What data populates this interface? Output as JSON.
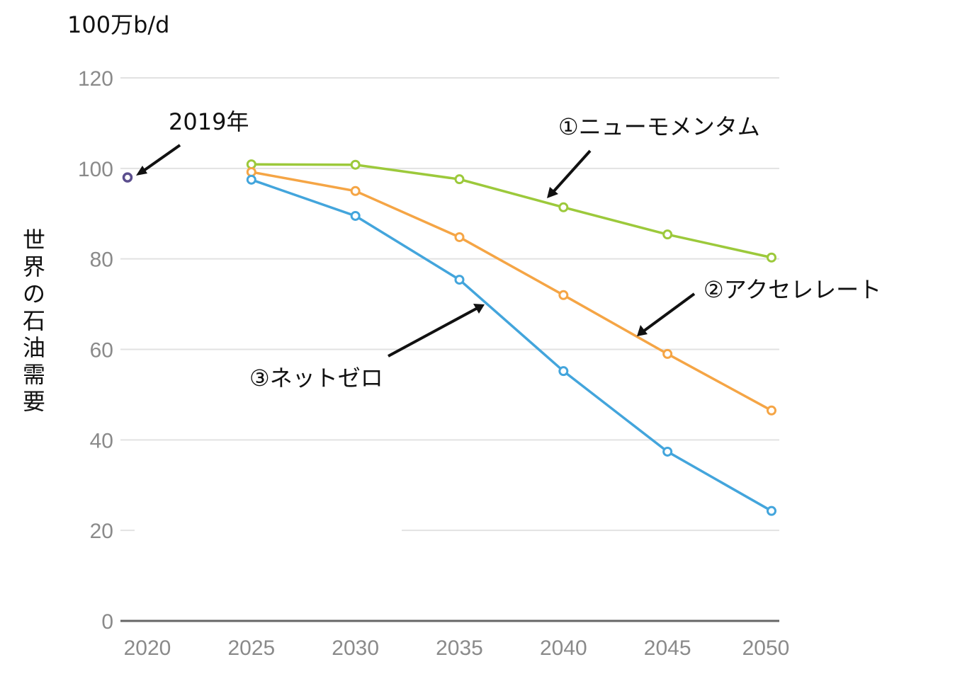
{
  "chart_data": {
    "type": "line",
    "unit_label": "100万b/d",
    "ylabel": "世界の石油需要",
    "xlabel": "",
    "x": [
      2025,
      2030,
      2035,
      2040,
      2045,
      2050
    ],
    "x_ticks": [
      "2020",
      "2025",
      "2030",
      "2035",
      "2040",
      "2045",
      "2050"
    ],
    "y_ticks": [
      "0",
      "20",
      "40",
      "60",
      "80",
      "100",
      "120"
    ],
    "xlim": [
      2020,
      2050
    ],
    "ylim": [
      0,
      120
    ],
    "grid": true,
    "series": [
      {
        "name": "①ニューモメンタム",
        "color": "#9cc93b",
        "values": [
          100.9,
          100.8,
          97.6,
          91.4,
          85.4,
          80.3
        ]
      },
      {
        "name": "②アクセレレート",
        "color": "#f5a545",
        "values": [
          99.2,
          95.0,
          84.8,
          72.0,
          59.0,
          46.5
        ]
      },
      {
        "name": "③ネットゼロ",
        "color": "#43a5dc",
        "values": [
          97.5,
          89.5,
          75.4,
          55.2,
          37.4,
          24.3
        ]
      }
    ],
    "point_2019": {
      "label": "2019年",
      "x": 2019,
      "value": 98.0,
      "color": "#5b4e8e"
    }
  }
}
